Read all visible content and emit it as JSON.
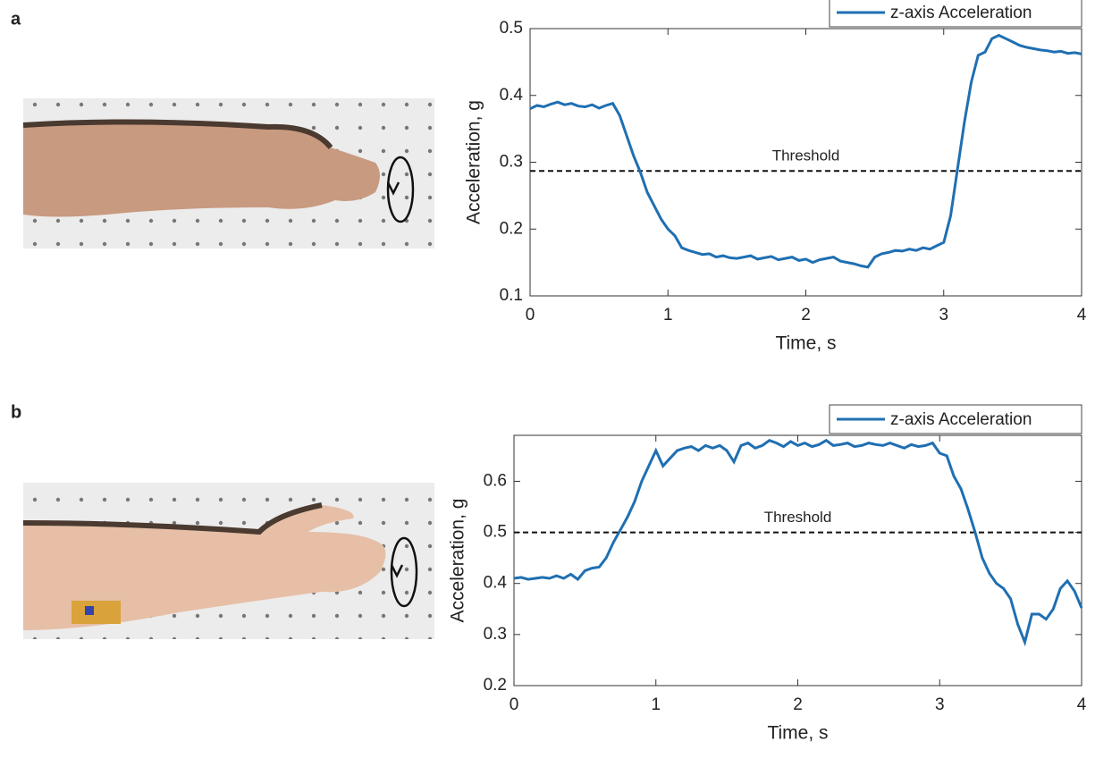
{
  "panel_labels": [
    "a",
    "b"
  ],
  "chart_data": [
    {
      "type": "line",
      "xlabel": "Time, s",
      "ylabel": "Acceleration, g",
      "xlim": [
        0,
        4
      ],
      "ylim": [
        0.1,
        0.5
      ],
      "xticks": [
        0,
        1,
        2,
        3,
        4
      ],
      "yticks": [
        0.1,
        0.2,
        0.3,
        0.4,
        0.5
      ],
      "legend": "top-right",
      "annotations": [
        {
          "text": "Threshold",
          "y": 0.287
        }
      ],
      "x": [
        0,
        0.05,
        0.1,
        0.15,
        0.2,
        0.25,
        0.3,
        0.35,
        0.4,
        0.45,
        0.5,
        0.55,
        0.6,
        0.65,
        0.7,
        0.75,
        0.8,
        0.85,
        0.9,
        0.95,
        1,
        1.05,
        1.1,
        1.15,
        1.2,
        1.25,
        1.3,
        1.35,
        1.4,
        1.45,
        1.5,
        1.55,
        1.6,
        1.65,
        1.7,
        1.75,
        1.8,
        1.85,
        1.9,
        1.95,
        2,
        2.05,
        2.1,
        2.15,
        2.2,
        2.25,
        2.3,
        2.35,
        2.4,
        2.45,
        2.5,
        2.55,
        2.6,
        2.65,
        2.7,
        2.75,
        2.8,
        2.85,
        2.9,
        2.95,
        3,
        3.05,
        3.1,
        3.15,
        3.2,
        3.25,
        3.3,
        3.35,
        3.4,
        3.45,
        3.5,
        3.55,
        3.6,
        3.65,
        3.7,
        3.75,
        3.8,
        3.85,
        3.9,
        3.95,
        4
      ],
      "series": [
        {
          "name": "z-axis Acceleration",
          "color": "#1f6fb2",
          "values": [
            0.38,
            0.385,
            0.383,
            0.387,
            0.39,
            0.386,
            0.388,
            0.384,
            0.383,
            0.386,
            0.381,
            0.385,
            0.388,
            0.37,
            0.34,
            0.31,
            0.285,
            0.255,
            0.235,
            0.215,
            0.2,
            0.19,
            0.172,
            0.168,
            0.165,
            0.162,
            0.163,
            0.158,
            0.16,
            0.157,
            0.156,
            0.158,
            0.16,
            0.155,
            0.157,
            0.159,
            0.154,
            0.156,
            0.158,
            0.153,
            0.155,
            0.15,
            0.154,
            0.156,
            0.158,
            0.152,
            0.15,
            0.148,
            0.145,
            0.143,
            0.158,
            0.163,
            0.165,
            0.168,
            0.167,
            0.17,
            0.168,
            0.172,
            0.17,
            0.175,
            0.18,
            0.22,
            0.29,
            0.36,
            0.42,
            0.46,
            0.465,
            0.485,
            0.49,
            0.485,
            0.48,
            0.475,
            0.472,
            0.47,
            0.468,
            0.467,
            0.465,
            0.466,
            0.463,
            0.464,
            0.462
          ]
        }
      ]
    },
    {
      "type": "line",
      "xlabel": "Time, s",
      "ylabel": "Acceleration, g",
      "xlim": [
        0,
        4
      ],
      "ylim": [
        0.2,
        0.69
      ],
      "xticks": [
        0,
        1,
        2,
        3,
        4
      ],
      "yticks": [
        0.2,
        0.3,
        0.4,
        0.5,
        0.6
      ],
      "legend": "top-right",
      "annotations": [
        {
          "text": "Threshold",
          "y": 0.5
        }
      ],
      "x": [
        0,
        0.05,
        0.1,
        0.15,
        0.2,
        0.25,
        0.3,
        0.35,
        0.4,
        0.45,
        0.5,
        0.55,
        0.6,
        0.65,
        0.7,
        0.75,
        0.8,
        0.85,
        0.9,
        0.95,
        1,
        1.05,
        1.1,
        1.15,
        1.2,
        1.25,
        1.3,
        1.35,
        1.4,
        1.45,
        1.5,
        1.55,
        1.6,
        1.65,
        1.7,
        1.75,
        1.8,
        1.85,
        1.9,
        1.95,
        2,
        2.05,
        2.1,
        2.15,
        2.2,
        2.25,
        2.3,
        2.35,
        2.4,
        2.45,
        2.5,
        2.55,
        2.6,
        2.65,
        2.7,
        2.75,
        2.8,
        2.85,
        2.9,
        2.95,
        3,
        3.05,
        3.1,
        3.15,
        3.2,
        3.25,
        3.3,
        3.35,
        3.4,
        3.45,
        3.5,
        3.55,
        3.6,
        3.65,
        3.7,
        3.75,
        3.8,
        3.85,
        3.9,
        3.95,
        4
      ],
      "series": [
        {
          "name": "z-axis Acceleration",
          "color": "#1f6fb2",
          "values": [
            0.41,
            0.412,
            0.408,
            0.41,
            0.412,
            0.41,
            0.415,
            0.41,
            0.418,
            0.408,
            0.425,
            0.43,
            0.432,
            0.45,
            0.48,
            0.505,
            0.53,
            0.56,
            0.6,
            0.63,
            0.66,
            0.63,
            0.645,
            0.66,
            0.665,
            0.668,
            0.66,
            0.67,
            0.665,
            0.67,
            0.66,
            0.638,
            0.67,
            0.675,
            0.665,
            0.67,
            0.68,
            0.675,
            0.668,
            0.678,
            0.67,
            0.675,
            0.668,
            0.672,
            0.68,
            0.67,
            0.672,
            0.675,
            0.668,
            0.67,
            0.675,
            0.672,
            0.67,
            0.675,
            0.67,
            0.665,
            0.672,
            0.668,
            0.67,
            0.675,
            0.655,
            0.65,
            0.61,
            0.585,
            0.545,
            0.5,
            0.45,
            0.42,
            0.4,
            0.39,
            0.37,
            0.32,
            0.285,
            0.34,
            0.34,
            0.33,
            0.35,
            0.39,
            0.405,
            0.385,
            0.352
          ]
        }
      ]
    }
  ]
}
